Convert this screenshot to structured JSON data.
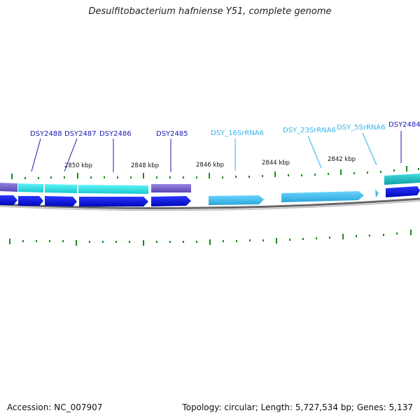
{
  "title": "Desulfitobacterium hafniense Y51, complete genome",
  "footer": {
    "accession": "Accession: NC_007907",
    "summary": "Topology: circular; Length: 5,727,534 bp; Genes: 5,137"
  },
  "colors": {
    "protein_gene": "#0a14e0",
    "rna_gene": "#3cbff0",
    "cds_cyan": "#22e0e8",
    "cds_purple": "#7a66cc",
    "cds_teal": "#1cc4c4",
    "tick": "#1a8a1a",
    "backbone": "#777777",
    "label_dark": "#1a1ab0",
    "label_light": "#33b4e8"
  },
  "scale_labels": [
    "2850 kbp",
    "2848 kbp",
    "2846 kbp",
    "2844 kbp",
    "2842 kbp"
  ],
  "features": [
    {
      "label": "DSY2488",
      "type": "protein",
      "strand": "-"
    },
    {
      "label": "DSY2487",
      "type": "protein",
      "strand": "-"
    },
    {
      "label": "DSY2486",
      "type": "protein",
      "strand": "-"
    },
    {
      "label": "DSY2485",
      "type": "protein",
      "strand": "-"
    },
    {
      "label": "DSY_16SrRNA6",
      "type": "rna",
      "strand": "-"
    },
    {
      "label": "DSY_23SrRNA6",
      "type": "rna",
      "strand": "-"
    },
    {
      "label": "DSY_5SrRNA6",
      "type": "rna",
      "strand": "-"
    },
    {
      "label": "DSY2484",
      "type": "protein",
      "strand": "-"
    }
  ]
}
